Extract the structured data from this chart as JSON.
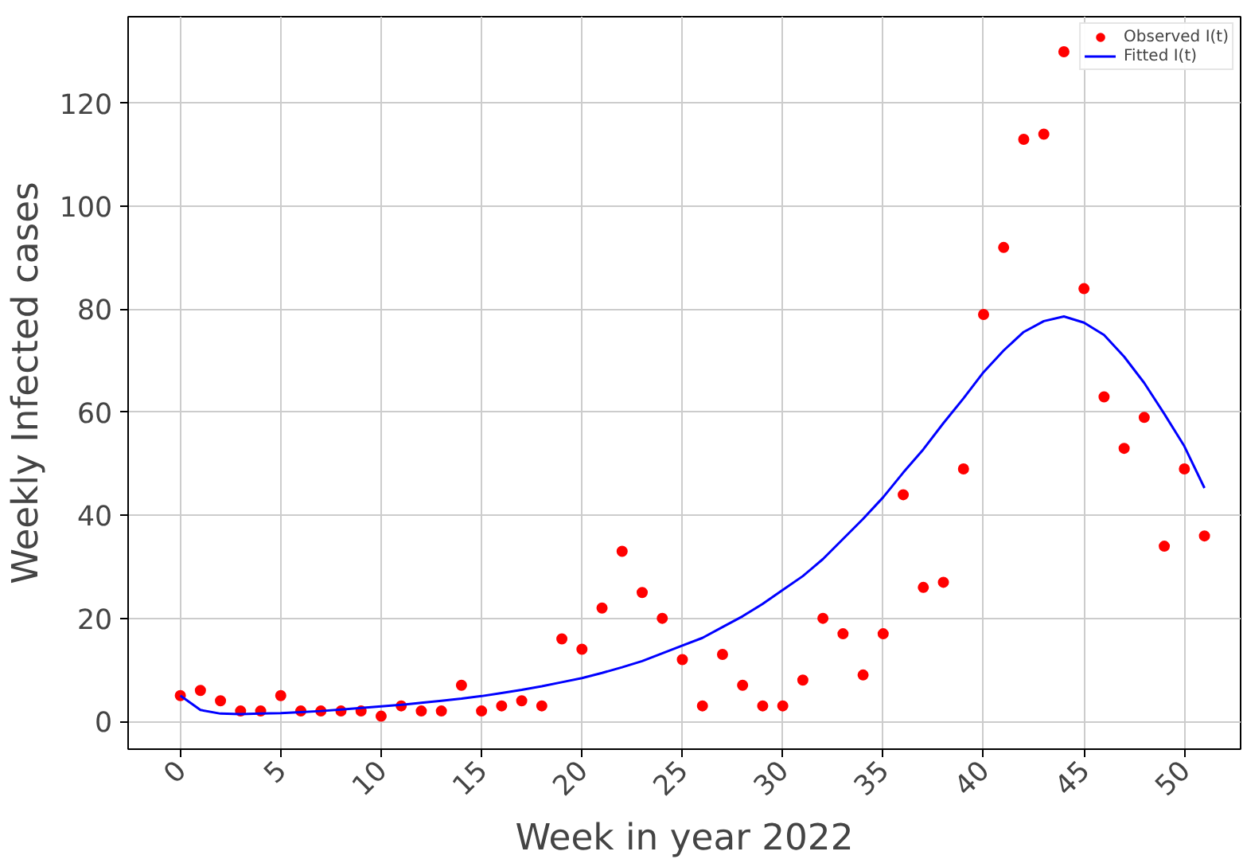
{
  "chart_data": {
    "type": "scatter",
    "xlabel": "Week in year 2022",
    "ylabel": "Weekly Infected cases",
    "x": [
      0,
      1,
      2,
      3,
      4,
      5,
      6,
      7,
      8,
      9,
      10,
      11,
      12,
      13,
      14,
      15,
      16,
      17,
      18,
      19,
      20,
      21,
      22,
      23,
      24,
      25,
      26,
      27,
      28,
      29,
      30,
      31,
      32,
      33,
      34,
      35,
      36,
      37,
      38,
      39,
      40,
      41,
      42,
      43,
      44,
      45,
      46,
      47,
      48,
      49,
      50,
      51
    ],
    "series": [
      {
        "name": "Observed I(t)",
        "marker": "circle",
        "color": "#ff0000",
        "values": [
          5,
          6,
          4,
          2,
          2,
          5,
          2,
          2,
          2,
          2,
          1,
          3,
          2,
          2,
          7,
          2,
          3,
          4,
          3,
          16,
          14,
          22,
          33,
          25,
          20,
          12,
          3,
          13,
          7,
          3,
          3,
          8,
          20,
          17,
          9,
          17,
          44,
          26,
          27,
          49,
          79,
          92,
          113,
          114,
          130,
          84,
          63,
          53,
          59,
          34,
          49,
          36
        ]
      },
      {
        "name": "Fitted I(t)",
        "type": "line",
        "marker": "none",
        "line_style": "solid",
        "color": "#0000ff",
        "values": [
          5,
          2.2,
          1.5,
          1.4,
          1.5,
          1.6,
          1.8,
          2.0,
          2.3,
          2.6,
          2.9,
          3.2,
          3.6,
          4.0,
          4.4,
          4.9,
          5.5,
          6.1,
          6.8,
          7.6,
          8.4,
          9.4,
          10.5,
          11.7,
          13.2,
          14.7,
          16.2,
          18.3,
          20.4,
          22.8,
          25.5,
          28.2,
          31.5,
          35.4,
          39.3,
          43.5,
          48.3,
          52.8,
          57.9,
          62.7,
          67.8,
          72,
          75.6,
          77.7,
          78.6,
          77.4,
          75,
          70.8,
          65.7,
          59.7,
          53.4,
          45.3
        ]
      }
    ],
    "xlim": [
      -2.6,
      52.8
    ],
    "ylim": [
      -5.4,
      136.8
    ],
    "xticks": [
      0,
      5,
      10,
      15,
      20,
      25,
      30,
      35,
      40,
      45,
      50
    ],
    "yticks": [
      0,
      20,
      40,
      60,
      80,
      100,
      120
    ],
    "grid": true,
    "legend": "top right"
  }
}
